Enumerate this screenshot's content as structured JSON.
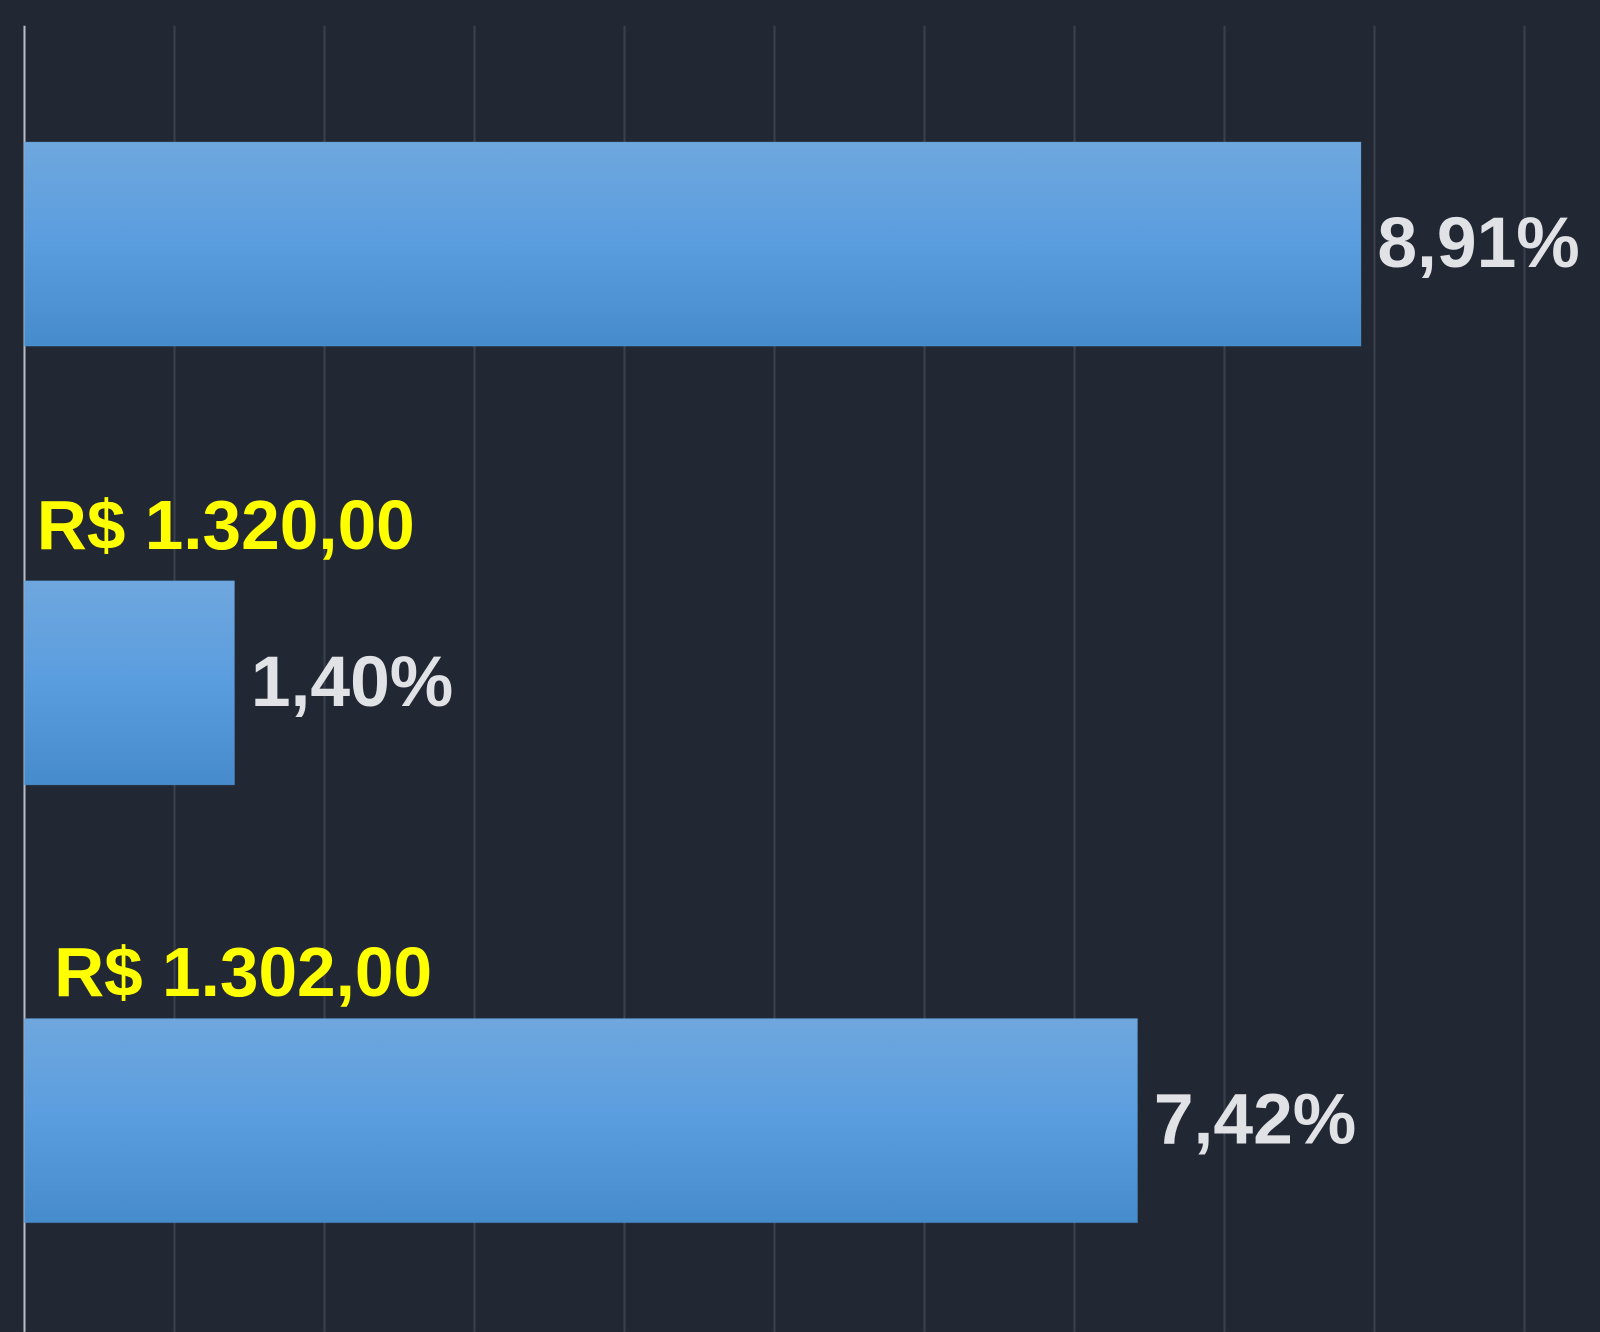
{
  "chart_data": {
    "type": "bar",
    "orientation": "horizontal",
    "categories": [
      null,
      null,
      null
    ],
    "values": [
      8.91,
      1.4,
      7.42
    ],
    "value_labels": [
      "8,91%",
      "1,40%",
      "7,42%"
    ],
    "color": "#5599dc",
    "xlim": [
      0,
      10
    ],
    "xticks": [
      0,
      1,
      2,
      3,
      4,
      5,
      6,
      7,
      8,
      9,
      10
    ],
    "grid": true,
    "annotations": [
      "R$ 1.320,00",
      "R$ 1.302,00"
    ]
  }
}
